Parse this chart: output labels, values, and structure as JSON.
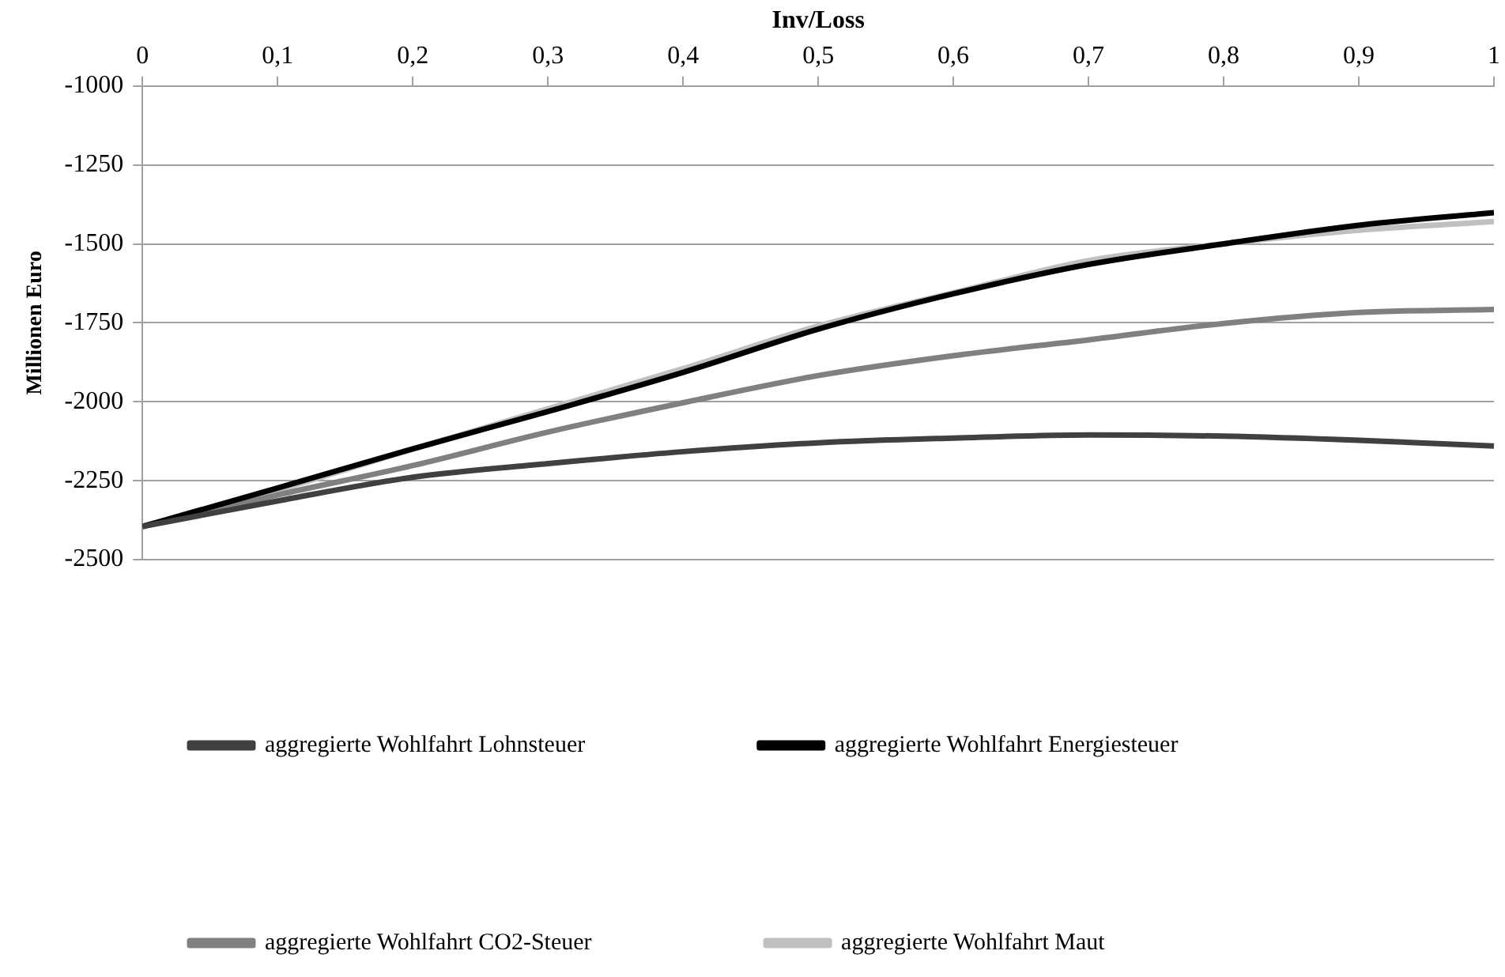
{
  "chart_data": {
    "type": "line",
    "xlabel": "Inv/Loss",
    "ylabel": "Millionen Euro",
    "x": [
      0,
      0.1,
      0.2,
      0.3,
      0.4,
      0.5,
      0.6,
      0.7,
      0.8,
      0.9,
      1
    ],
    "series": [
      {
        "name": "aggregierte Wohlfahrt Lohnsteuer",
        "color": "#404040",
        "values": [
          -2395,
          -2314,
          -2239,
          -2196,
          -2158,
          -2130,
          -2115,
          -2105,
          -2109,
          -2122,
          -2140
        ]
      },
      {
        "name": "aggregierte Wohlfahrt Energiesteuer",
        "color": "#000000",
        "values": [
          -2395,
          -2273,
          -2149,
          -2031,
          -1907,
          -1770,
          -1658,
          -1565,
          -1500,
          -1441,
          -1401
        ]
      },
      {
        "name": "aggregierte Wohlfahrt CO2-Steuer",
        "color": "#808080",
        "values": [
          -2395,
          -2295,
          -2202,
          -2096,
          -2003,
          -1917,
          -1854,
          -1804,
          -1752,
          -1717,
          -1708
        ]
      },
      {
        "name": "aggregierte Wohlfahrt Maut",
        "color": "#c0c0c0",
        "values": [
          -2395,
          -2280,
          -2150,
          -2022,
          -1895,
          -1760,
          -1655,
          -1553,
          -1500,
          -1457,
          -1429
        ]
      }
    ],
    "xlim": [
      0,
      1
    ],
    "xticks": [
      {
        "value": 0,
        "label": "0"
      },
      {
        "value": 0.1,
        "label": "0,1"
      },
      {
        "value": 0.2,
        "label": "0,2"
      },
      {
        "value": 0.3,
        "label": "0,3"
      },
      {
        "value": 0.4,
        "label": "0,4"
      },
      {
        "value": 0.5,
        "label": "0,5"
      },
      {
        "value": 0.6,
        "label": "0,6"
      },
      {
        "value": 0.7,
        "label": "0,7"
      },
      {
        "value": 0.8,
        "label": "0,8"
      },
      {
        "value": 0.9,
        "label": "0,9"
      },
      {
        "value": 1,
        "label": "1"
      }
    ],
    "ylim": [
      -2500,
      -1000
    ],
    "yticks": [
      -2500,
      -2250,
      -2000,
      -1750,
      -1500,
      -1250,
      -1000
    ],
    "grid": "y",
    "legend": "bottom",
    "marker": "none",
    "line_style": "solid"
  }
}
